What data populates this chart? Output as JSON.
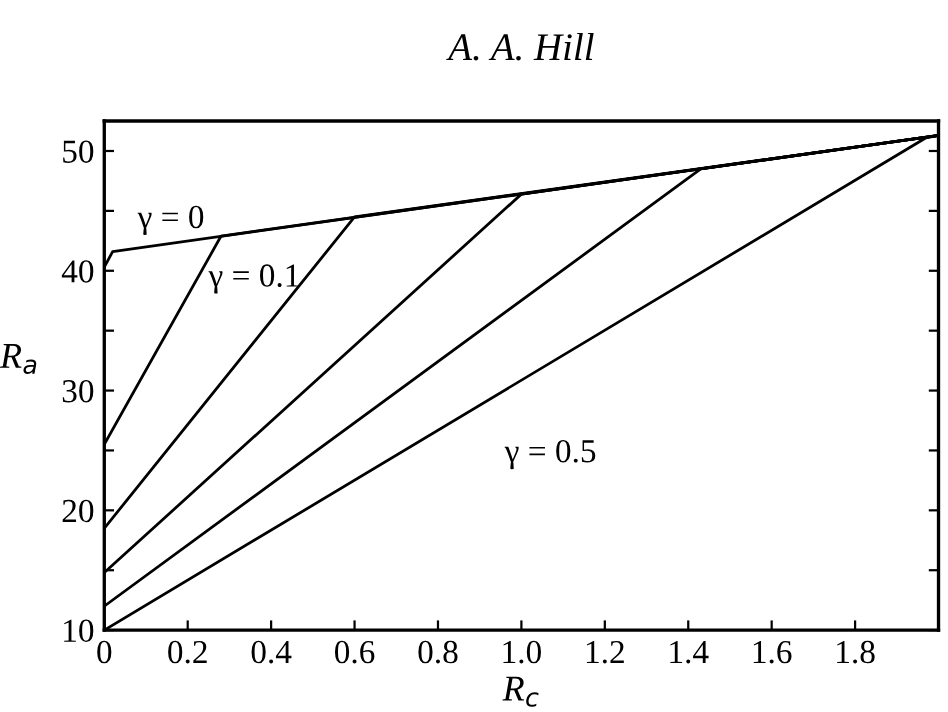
{
  "chart_data": {
    "type": "line",
    "title": "A. A. Hill",
    "xlabel": "R$_{c}$",
    "ylabel": "R$_{a}$",
    "xlim": [
      0,
      2
    ],
    "xticks": [
      0,
      0.2,
      0.4,
      0.6,
      0.8,
      {
        "value": 1.0,
        "label": "1.0"
      },
      1.2,
      1.4,
      1.6,
      1.8,
      {
        "value": 2.0,
        "label": null
      }
    ],
    "ylim": [
      10,
      52.5
    ],
    "yticks": [
      10,
      {
        "value": 15,
        "label": null
      },
      20,
      {
        "value": 25,
        "label": null
      },
      30,
      {
        "value": 35,
        "label": null
      },
      40,
      {
        "value": 45,
        "label": null
      },
      50
    ],
    "grid": false,
    "legend": false,
    "marker": "none",
    "line_style": "solid",
    "series": [
      {
        "name": "γ = 0",
        "color": "#000000",
        "x": [
          0,
          0.02,
          2.0
        ],
        "values": [
          40.3,
          41.6,
          51.3
        ]
      },
      {
        "name": "γ = 0.1",
        "color": "#000000",
        "x": [
          0,
          0.28,
          2.0
        ],
        "values": [
          25.5,
          42.9,
          51.3
        ]
      },
      {
        "color": "#000000",
        "x": [
          0,
          0.6,
          2.0
        ],
        "values": [
          18.5,
          44.5,
          51.3
        ]
      },
      {
        "color": "#000000",
        "x": [
          0,
          1.0,
          2.0
        ],
        "values": [
          14.8,
          46.4,
          51.3
        ]
      },
      {
        "color": "#000000",
        "x": [
          0,
          1.43,
          2.0
        ],
        "values": [
          12.0,
          48.5,
          51.3
        ]
      },
      {
        "name": "γ = 0.5",
        "color": "#000000",
        "x": [
          0,
          1.97,
          2.0
        ],
        "values": [
          10.0,
          51.1,
          51.3
        ]
      }
    ]
  }
}
